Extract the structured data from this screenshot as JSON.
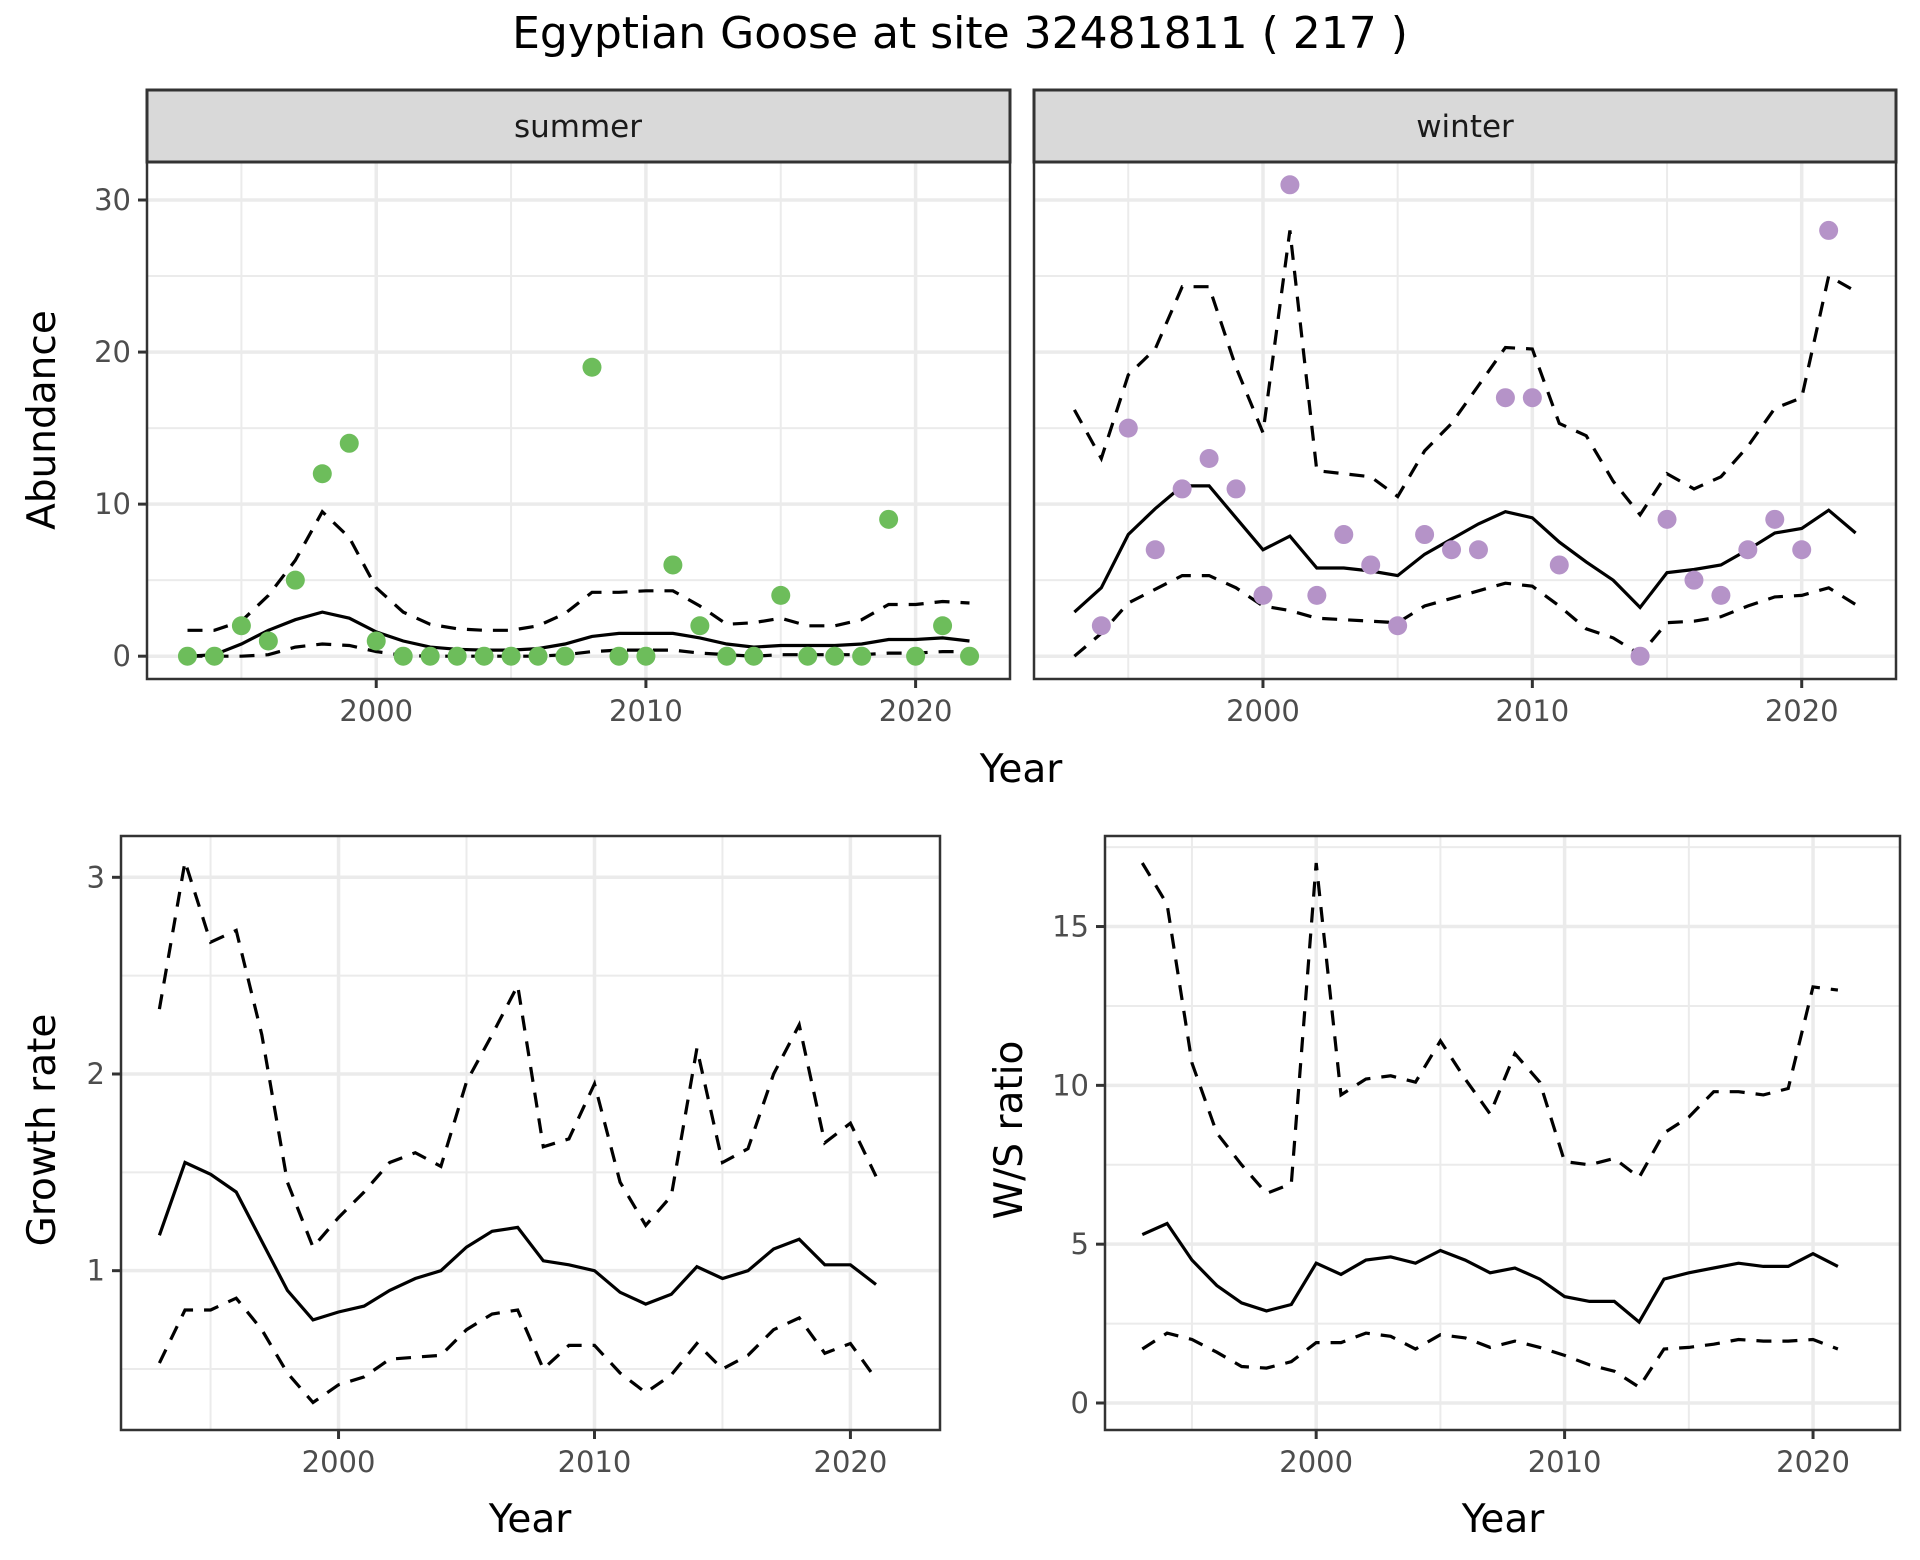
{
  "title": "Egyptian Goose at site 32481811 ( 217 )",
  "colors": {
    "summer_points": "#6dbd5b",
    "winter_points": "#b593c8",
    "strip_bg": "#d9d9d9",
    "grid": "#ebebeb",
    "line": "#000000"
  },
  "chart_data": [
    {
      "type": "scatter",
      "panel": "abundance",
      "facet": "summer",
      "xlabel": "Year",
      "ylabel": "Abundance",
      "xlim": [
        1991.5,
        2023.5
      ],
      "ylim": [
        -1.5,
        32.5
      ],
      "xticks": [
        2000,
        2010,
        2020
      ],
      "yticks": [
        0,
        10,
        20,
        30
      ],
      "grid": true,
      "x": [
        1993,
        1994,
        1995,
        1996,
        1997,
        1998,
        1999,
        2000,
        2001,
        2002,
        2003,
        2004,
        2005,
        2006,
        2007,
        2008,
        2009,
        2010,
        2011,
        2012,
        2013,
        2014,
        2015,
        2016,
        2017,
        2018,
        2019,
        2020,
        2021,
        2022
      ],
      "points": [
        0,
        0,
        2,
        1,
        5,
        12,
        14,
        1,
        0,
        0,
        0,
        0,
        0,
        0,
        0,
        19,
        0,
        0,
        6,
        2,
        0,
        0,
        4,
        0,
        0,
        0,
        9,
        0,
        2,
        0
      ],
      "series": [
        {
          "name": "mean",
          "style": "solid",
          "values": [
            0,
            0.1,
            0.8,
            1.7,
            2.4,
            2.9,
            2.5,
            1.6,
            1.0,
            0.6,
            0.45,
            0.4,
            0.4,
            0.5,
            0.8,
            1.3,
            1.5,
            1.5,
            1.5,
            1.2,
            0.8,
            0.6,
            0.7,
            0.7,
            0.7,
            0.8,
            1.1,
            1.1,
            1.2,
            1.0
          ]
        },
        {
          "name": "upper",
          "style": "dashed",
          "values": [
            1.7,
            1.7,
            2.3,
            4.0,
            6.3,
            9.5,
            7.8,
            4.5,
            2.9,
            2.1,
            1.8,
            1.7,
            1.7,
            2.0,
            2.8,
            4.2,
            4.2,
            4.3,
            4.3,
            3.3,
            2.1,
            2.2,
            2.5,
            2.0,
            2.0,
            2.4,
            3.4,
            3.4,
            3.6,
            3.5
          ]
        },
        {
          "name": "lower",
          "style": "dashed",
          "values": [
            0,
            0,
            0,
            0.1,
            0.6,
            0.8,
            0.7,
            0.3,
            0.05,
            0,
            0,
            0,
            0,
            0,
            0.1,
            0.3,
            0.4,
            0.4,
            0.4,
            0.2,
            0.1,
            0,
            0.1,
            0.1,
            0.1,
            0.1,
            0.2,
            0.2,
            0.3,
            0.3
          ]
        }
      ]
    },
    {
      "type": "scatter",
      "panel": "abundance",
      "facet": "winter",
      "xlabel": "Year",
      "ylabel": "Abundance",
      "xlim": [
        1991.5,
        2023.5
      ],
      "ylim": [
        -1.5,
        32.5
      ],
      "xticks": [
        2000,
        2010,
        2020
      ],
      "yticks": [
        0,
        10,
        20,
        30
      ],
      "grid": true,
      "x": [
        1993,
        1994,
        1995,
        1996,
        1997,
        1998,
        1999,
        2000,
        2001,
        2002,
        2003,
        2004,
        2005,
        2006,
        2007,
        2008,
        2009,
        2010,
        2011,
        2012,
        2013,
        2014,
        2015,
        2016,
        2017,
        2018,
        2019,
        2020,
        2021,
        2022
      ],
      "points": [
        null,
        2,
        15,
        7,
        11,
        13,
        11,
        4,
        31,
        4,
        8,
        6,
        2,
        8,
        7,
        7,
        17,
        17,
        6,
        null,
        null,
        0,
        9,
        5,
        4,
        7,
        9,
        7,
        28,
        null
      ],
      "series": [
        {
          "name": "mean",
          "style": "solid",
          "values": [
            2.9,
            4.5,
            8.0,
            9.7,
            11.2,
            11.2,
            9.1,
            7.0,
            7.9,
            5.8,
            5.8,
            5.6,
            5.3,
            6.7,
            7.7,
            8.7,
            9.5,
            9.1,
            7.5,
            6.2,
            5.0,
            3.2,
            5.5,
            5.7,
            6.0,
            7.0,
            8.1,
            8.4,
            9.6,
            8.1
          ]
        },
        {
          "name": "upper",
          "style": "dashed",
          "values": [
            16.2,
            13.0,
            18.5,
            20.2,
            24.3,
            24.3,
            19.0,
            14.7,
            28.0,
            12.2,
            12.0,
            11.8,
            10.5,
            13.5,
            15.3,
            17.8,
            20.3,
            20.2,
            15.3,
            14.5,
            11.5,
            9.3,
            12.0,
            11.0,
            11.8,
            13.8,
            16.3,
            17.0,
            25.0,
            24.0
          ]
        },
        {
          "name": "lower",
          "style": "dashed",
          "values": [
            0,
            1.5,
            3.5,
            4.4,
            5.3,
            5.3,
            4.5,
            3.3,
            3.0,
            2.5,
            2.4,
            2.3,
            2.2,
            3.3,
            3.8,
            4.3,
            4.8,
            4.6,
            3.3,
            1.8,
            1.2,
            0.1,
            2.2,
            2.3,
            2.6,
            3.3,
            3.9,
            4.0,
            4.5,
            3.4
          ]
        }
      ]
    },
    {
      "type": "line",
      "panel": "growth",
      "xlabel": "Year",
      "ylabel": "Growth rate",
      "xlim": [
        1991.5,
        2023.5
      ],
      "ylim": [
        0.19,
        3.21
      ],
      "xticks": [
        2000,
        2010,
        2020
      ],
      "yticks": [
        1,
        2,
        3
      ],
      "grid": true,
      "x": [
        1993,
        1994,
        1995,
        1996,
        1997,
        1998,
        1999,
        2000,
        2001,
        2002,
        2003,
        2004,
        2005,
        2006,
        2007,
        2008,
        2009,
        2010,
        2011,
        2012,
        2013,
        2014,
        2015,
        2016,
        2017,
        2018,
        2019,
        2020,
        2021
      ],
      "series": [
        {
          "name": "mean",
          "style": "solid",
          "values": [
            1.18,
            1.55,
            1.49,
            1.4,
            1.15,
            0.9,
            0.75,
            0.79,
            0.82,
            0.9,
            0.96,
            1.0,
            1.12,
            1.2,
            1.22,
            1.05,
            1.03,
            1.0,
            0.89,
            0.83,
            0.88,
            1.02,
            0.96,
            1.0,
            1.11,
            1.16,
            1.03,
            1.03,
            0.93
          ]
        },
        {
          "name": "upper",
          "style": "dashed",
          "values": [
            2.33,
            3.08,
            2.67,
            2.73,
            2.2,
            1.45,
            1.12,
            1.27,
            1.4,
            1.55,
            1.6,
            1.53,
            1.96,
            2.2,
            2.45,
            1.63,
            1.67,
            1.95,
            1.45,
            1.23,
            1.38,
            2.13,
            1.55,
            1.62,
            2.0,
            2.25,
            1.65,
            1.75,
            1.48
          ]
        },
        {
          "name": "lower",
          "style": "dashed",
          "values": [
            0.53,
            0.8,
            0.8,
            0.86,
            0.7,
            0.48,
            0.33,
            0.42,
            0.46,
            0.55,
            0.56,
            0.57,
            0.7,
            0.78,
            0.8,
            0.5,
            0.62,
            0.62,
            0.48,
            0.38,
            0.47,
            0.63,
            0.5,
            0.57,
            0.7,
            0.76,
            0.58,
            0.63,
            0.45
          ]
        }
      ]
    },
    {
      "type": "line",
      "panel": "ws_ratio",
      "xlabel": "Year",
      "ylabel": "W/S ratio",
      "xlim": [
        1991.5,
        2023.5
      ],
      "ylim": [
        -0.85,
        17.85
      ],
      "xticks": [
        2000,
        2010,
        2020
      ],
      "yticks": [
        0,
        5,
        10,
        15
      ],
      "grid": true,
      "x": [
        1993,
        1994,
        1995,
        1996,
        1997,
        1998,
        1999,
        2000,
        2001,
        2002,
        2003,
        2004,
        2005,
        2006,
        2007,
        2008,
        2009,
        2010,
        2011,
        2012,
        2013,
        2014,
        2015,
        2016,
        2017,
        2018,
        2019,
        2020,
        2021
      ],
      "series": [
        {
          "name": "mean",
          "style": "solid",
          "values": [
            5.3,
            5.65,
            4.5,
            3.7,
            3.15,
            2.9,
            3.1,
            4.4,
            4.05,
            4.5,
            4.6,
            4.4,
            4.8,
            4.5,
            4.1,
            4.25,
            3.9,
            3.35,
            3.2,
            3.2,
            2.55,
            3.9,
            4.1,
            4.25,
            4.4,
            4.3,
            4.3,
            4.7,
            4.3
          ]
        },
        {
          "name": "upper",
          "style": "dashed",
          "values": [
            17.0,
            15.7,
            10.7,
            8.5,
            7.5,
            6.6,
            6.9,
            17.0,
            9.7,
            10.2,
            10.3,
            10.1,
            11.4,
            10.2,
            9.1,
            11.0,
            10.1,
            7.6,
            7.5,
            7.7,
            7.1,
            8.5,
            9.0,
            9.8,
            9.8,
            9.7,
            9.9,
            13.1,
            13.0
          ]
        },
        {
          "name": "lower",
          "style": "dashed",
          "values": [
            1.7,
            2.2,
            2.0,
            1.6,
            1.15,
            1.1,
            1.3,
            1.9,
            1.9,
            2.2,
            2.1,
            1.7,
            2.15,
            2.05,
            1.75,
            1.95,
            1.75,
            1.5,
            1.2,
            1.0,
            0.5,
            1.7,
            1.75,
            1.85,
            2.0,
            1.95,
            1.95,
            2.0,
            1.7
          ]
        }
      ]
    }
  ]
}
